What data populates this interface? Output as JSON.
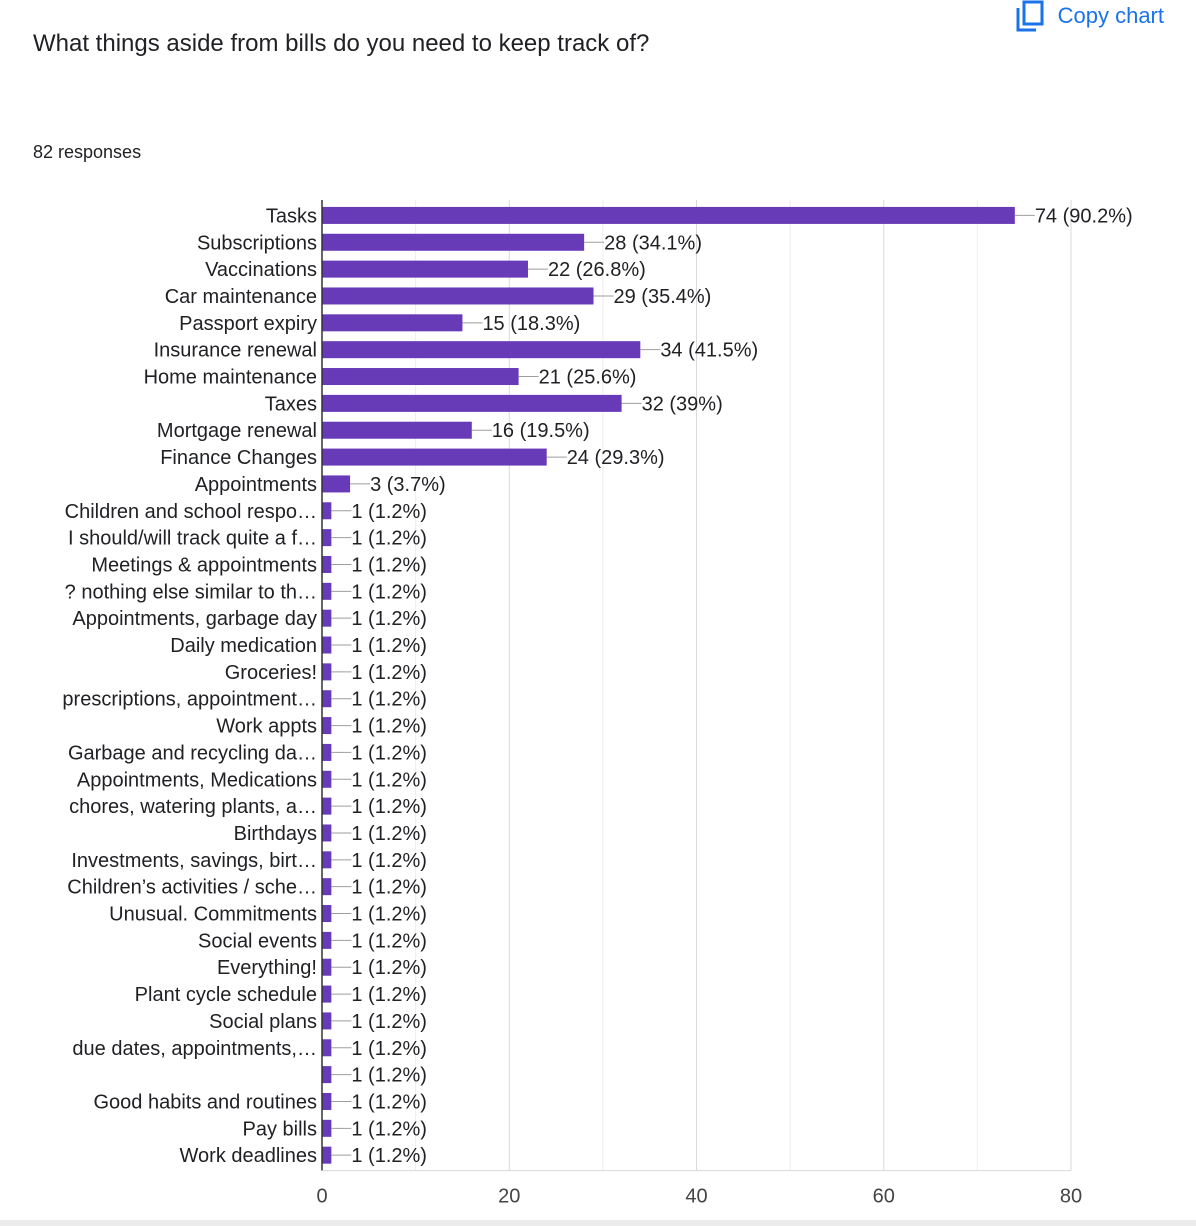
{
  "question": {
    "title": "What things aside from bills do you need to keep track of?",
    "responses_label": "82 responses"
  },
  "toolbar": {
    "copy_label": "Copy chart",
    "copy_icon": "copy-icon",
    "accent_color": "#1a73e8"
  },
  "chart_data": {
    "type": "bar",
    "orientation": "horizontal",
    "bar_color": "#673ab7",
    "categories": [
      "Tasks",
      "Subscriptions",
      "Vaccinations",
      "Car maintenance",
      "Passport expiry",
      "Insurance renewal",
      "Home maintenance",
      "Taxes",
      "Mortgage renewal",
      "Finance Changes",
      "Appointments",
      "Children and school respo…",
      "I should/will track quite a f…",
      "Meetings & appointments",
      "? nothing else similar to th…",
      "Appointments, garbage day",
      "Daily medication",
      "Groceries!",
      "prescriptions, appointment…",
      "Work appts",
      "Garbage and recycling da…",
      "Appointments, Medications",
      "chores, watering plants, a…",
      "Birthdays",
      "Investments, savings, birt…",
      "Children’s activities / sche…",
      "Unusual. Commitments",
      "Social events",
      "Everything!",
      "Plant cycle schedule",
      "Social plans",
      "due dates, appointments,…",
      "",
      "Good habits and routines",
      "Pay bills",
      "Work deadlines"
    ],
    "values": [
      74,
      28,
      22,
      29,
      15,
      34,
      21,
      32,
      16,
      24,
      3,
      1,
      1,
      1,
      1,
      1,
      1,
      1,
      1,
      1,
      1,
      1,
      1,
      1,
      1,
      1,
      1,
      1,
      1,
      1,
      1,
      1,
      1,
      1,
      1,
      1
    ],
    "data_labels": [
      "74 (90.2%)",
      "28 (34.1%)",
      "22 (26.8%)",
      "29 (35.4%)",
      "15 (18.3%)",
      "34 (41.5%)",
      "21 (25.6%)",
      "32 (39%)",
      "16 (19.5%)",
      "24 (29.3%)",
      "3 (3.7%)",
      "1 (1.2%)",
      "1 (1.2%)",
      "1 (1.2%)",
      "1 (1.2%)",
      "1 (1.2%)",
      "1 (1.2%)",
      "1 (1.2%)",
      "1 (1.2%)",
      "1 (1.2%)",
      "1 (1.2%)",
      "1 (1.2%)",
      "1 (1.2%)",
      "1 (1.2%)",
      "1 (1.2%)",
      "1 (1.2%)",
      "1 (1.2%)",
      "1 (1.2%)",
      "1 (1.2%)",
      "1 (1.2%)",
      "1 (1.2%)",
      "1 (1.2%)",
      "1 (1.2%)",
      "1 (1.2%)",
      "1 (1.2%)",
      "1 (1.2%)"
    ],
    "xlim": [
      0,
      80
    ],
    "x_ticks": [
      0,
      20,
      40,
      60,
      80
    ],
    "grid": true,
    "title": "",
    "xlabel": "",
    "ylabel": ""
  }
}
